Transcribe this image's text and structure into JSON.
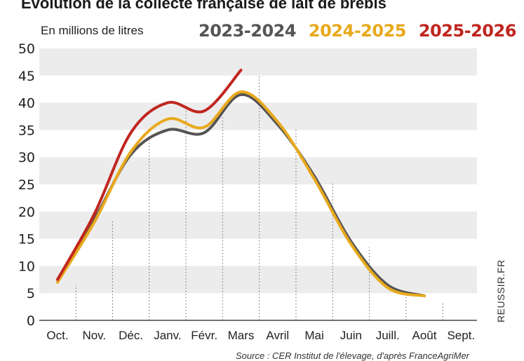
{
  "chart_data": {
    "type": "line",
    "title": "Evolution de la collecte française de lait de brebis",
    "ylabel": "En millions de litres",
    "ylim": [
      0,
      50
    ],
    "yticks": [
      0,
      5,
      10,
      15,
      20,
      25,
      30,
      35,
      40,
      45,
      50
    ],
    "categories": [
      "Oct.",
      "Nov.",
      "Déc.",
      "Janv.",
      "Févr.",
      "Mars",
      "Avril",
      "Mai",
      "Juin",
      "Juill.",
      "Août",
      "Sept."
    ],
    "grid": "horizontal bands",
    "legend": "top",
    "series": [
      {
        "name": "2023-2024",
        "color": "#555555",
        "values": [
          7.5,
          18.5,
          30.5,
          35,
          34.5,
          41.5,
          36,
          26.5,
          14.5,
          6.5,
          4.5,
          null
        ]
      },
      {
        "name": "2024-2025",
        "color": "#e8a91c",
        "values": [
          7,
          18,
          31,
          37,
          35.5,
          42,
          36.5,
          26,
          14,
          6,
          4.5,
          null
        ]
      },
      {
        "name": "2025-2026",
        "color": "#c0261f",
        "values": [
          7.5,
          19.5,
          34.5,
          40,
          38.5,
          46,
          null,
          null,
          null,
          null,
          null,
          null
        ]
      }
    ],
    "source": "Source : CER Institut de l'élevage, d'après FranceAgriMer",
    "watermark": "REUSSIR.FR"
  }
}
